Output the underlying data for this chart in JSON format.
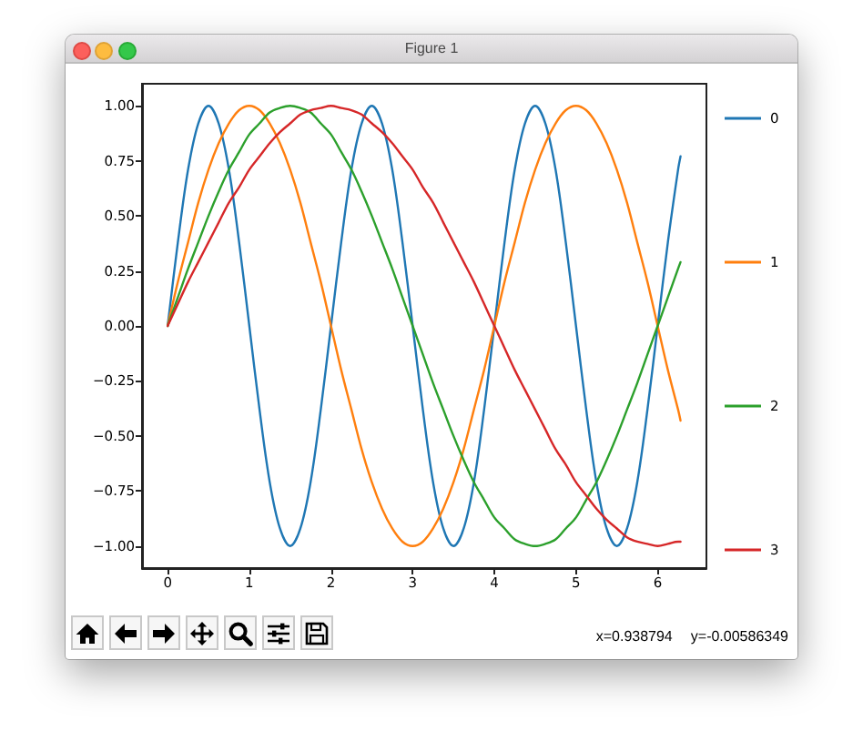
{
  "chart_data": {
    "type": "line",
    "annotations": [
      "Figure 1",
      "x=0.938794",
      "y=-0.00586349"
    ],
    "x": [
      0,
      0.125,
      0.25,
      0.375,
      0.5,
      0.625,
      0.75,
      0.875,
      1,
      1.125,
      1.25,
      1.375,
      1.5,
      1.625,
      1.75,
      1.875,
      2,
      2.125,
      2.25,
      2.375,
      2.5,
      2.625,
      2.75,
      2.875,
      3,
      3.125,
      3.25,
      3.375,
      3.5,
      3.625,
      3.75,
      3.875,
      4,
      4.125,
      4.25,
      4.375,
      4.5,
      4.625,
      4.75,
      4.875,
      5,
      5.125,
      5.25,
      5.375,
      5.5,
      5.625,
      5.75,
      5.875,
      6,
      6.125,
      6.25,
      6.28
    ],
    "series": [
      {
        "name": "0",
        "color": "#1f77b4",
        "values": [
          0,
          0.38,
          0.71,
          0.92,
          1,
          0.92,
          0.71,
          0.38,
          0,
          -0.38,
          -0.71,
          -0.92,
          -1,
          -0.92,
          -0.71,
          -0.38,
          0,
          0.38,
          0.71,
          0.92,
          1,
          0.92,
          0.71,
          0.38,
          0,
          -0.38,
          -0.71,
          -0.92,
          -1,
          -0.92,
          -0.71,
          -0.38,
          0,
          0.38,
          0.71,
          0.92,
          1,
          0.92,
          0.71,
          0.38,
          0,
          -0.38,
          -0.71,
          -0.92,
          -1,
          -0.92,
          -0.71,
          -0.38,
          0,
          0.38,
          0.71,
          0.77
        ]
      },
      {
        "name": "1",
        "color": "#ff7f0e",
        "values": [
          0,
          0.2,
          0.38,
          0.56,
          0.71,
          0.83,
          0.92,
          0.98,
          1,
          0.98,
          0.92,
          0.83,
          0.71,
          0.56,
          0.38,
          0.2,
          0,
          -0.2,
          -0.38,
          -0.56,
          -0.71,
          -0.83,
          -0.92,
          -0.98,
          -1,
          -0.98,
          -0.92,
          -0.83,
          -0.71,
          -0.56,
          -0.38,
          -0.2,
          0,
          0.2,
          0.38,
          0.56,
          0.71,
          0.83,
          0.92,
          0.98,
          1,
          0.98,
          0.92,
          0.83,
          0.71,
          0.56,
          0.38,
          0.2,
          0,
          -0.2,
          -0.38,
          -0.43
        ]
      },
      {
        "name": "2",
        "color": "#2ca02c",
        "values": [
          0,
          0.13,
          0.26,
          0.38,
          0.5,
          0.61,
          0.71,
          0.79,
          0.87,
          0.92,
          0.97,
          0.99,
          1,
          0.99,
          0.97,
          0.92,
          0.87,
          0.79,
          0.71,
          0.61,
          0.5,
          0.38,
          0.26,
          0.13,
          0,
          -0.13,
          -0.26,
          -0.38,
          -0.5,
          -0.61,
          -0.71,
          -0.79,
          -0.87,
          -0.92,
          -0.97,
          -0.99,
          -1,
          -0.99,
          -0.97,
          -0.92,
          -0.87,
          -0.79,
          -0.71,
          -0.61,
          -0.5,
          -0.38,
          -0.26,
          -0.13,
          0,
          0.13,
          0.26,
          0.29
        ]
      },
      {
        "name": "3",
        "color": "#d62728",
        "values": [
          0,
          0.1,
          0.2,
          0.29,
          0.38,
          0.47,
          0.56,
          0.63,
          0.71,
          0.77,
          0.83,
          0.88,
          0.92,
          0.96,
          0.98,
          0.99,
          1,
          0.99,
          0.98,
          0.96,
          0.92,
          0.88,
          0.83,
          0.77,
          0.71,
          0.63,
          0.56,
          0.47,
          0.38,
          0.29,
          0.2,
          0.1,
          0,
          -0.1,
          -0.2,
          -0.29,
          -0.38,
          -0.47,
          -0.56,
          -0.63,
          -0.71,
          -0.77,
          -0.83,
          -0.88,
          -0.92,
          -0.96,
          -0.98,
          -0.99,
          -1,
          -0.99,
          -0.98,
          -0.98
        ]
      }
    ],
    "xlim": [
      -0.314,
      6.597
    ],
    "ylim": [
      -1.1,
      1.1
    ],
    "xticks": [
      0,
      1,
      2,
      3,
      4,
      5,
      6
    ],
    "yticks": [
      {
        "value": -1,
        "label": "−1.00"
      },
      {
        "value": -0.75,
        "label": "−0.75"
      },
      {
        "value": -0.5,
        "label": "−0.50"
      },
      {
        "value": -0.25,
        "label": "−0.25"
      },
      {
        "value": 0,
        "label": "0.00"
      },
      {
        "value": 0.25,
        "label": "0.25"
      },
      {
        "value": 0.5,
        "label": "0.50"
      },
      {
        "value": 0.75,
        "label": "0.75"
      },
      {
        "value": 1,
        "label": "1.00"
      }
    ],
    "legend": "right",
    "grid": false,
    "marker": "none",
    "line_style": "solid"
  }
}
